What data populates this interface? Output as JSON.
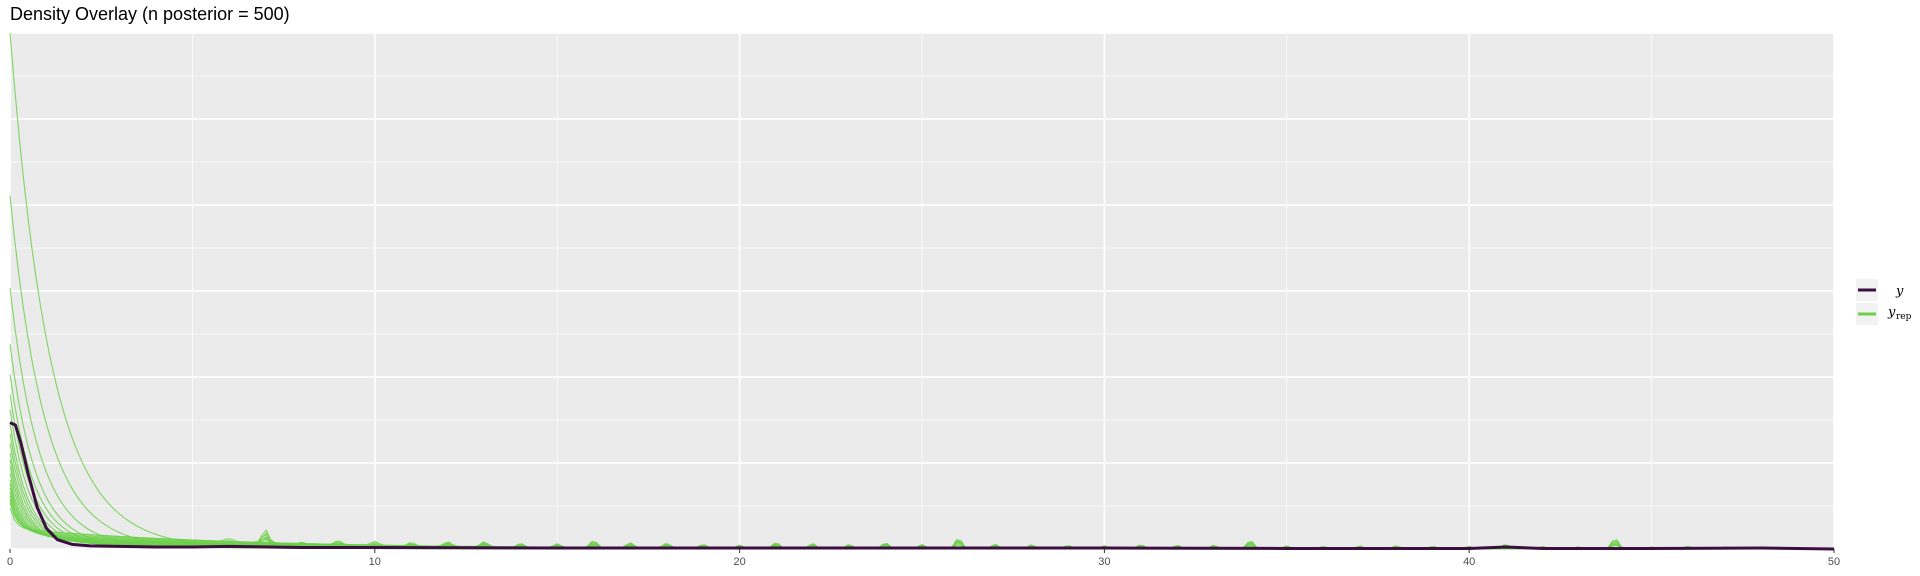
{
  "chart_data": {
    "type": "line",
    "title": "Density Overlay (n posterior = 500)",
    "xlabel": "",
    "ylabel": "",
    "xlim": [
      0,
      50
    ],
    "ylim": [
      0,
      1
    ],
    "x_ticks": [
      0,
      10,
      20,
      30,
      40,
      50
    ],
    "x_tick_labels": [
      "0",
      "10",
      "20",
      "30",
      "40",
      "50"
    ],
    "y_tick_labels_visible": false,
    "grid": true,
    "legend_position": "right",
    "legend": [
      {
        "key": "y",
        "label": "y",
        "color": "#3b0f3f"
      },
      {
        "key": "yrep",
        "label": "y",
        "subscript": "rep",
        "color": "#6cd04a"
      }
    ],
    "series": [
      {
        "name": "y",
        "color": "#3b0f3f",
        "x": [
          0,
          0.15,
          0.3,
          0.5,
          0.75,
          1.0,
          1.3,
          1.7,
          2.2,
          3,
          4,
          5,
          6,
          8,
          10,
          15,
          20,
          25,
          30,
          35,
          40,
          41,
          42,
          45,
          48,
          50
        ],
        "y": [
          0.245,
          0.24,
          0.205,
          0.145,
          0.08,
          0.04,
          0.018,
          0.009,
          0.006,
          0.005,
          0.004,
          0.004,
          0.005,
          0.003,
          0.003,
          0.002,
          0.002,
          0.002,
          0.002,
          0.001,
          0.001,
          0.004,
          0.001,
          0.001,
          0.002,
          0.0
        ]
      },
      {
        "name": "y_rep",
        "color": "#6cd04a",
        "draws": [
          {
            "peak": 1.0,
            "decay": 2.2,
            "tail": 0.004
          },
          {
            "peak": 0.68,
            "decay": 1.9,
            "tail": 0.005
          },
          {
            "peak": 0.5,
            "decay": 1.6,
            "tail": 0.006
          },
          {
            "peak": 0.39,
            "decay": 1.4,
            "tail": 0.007
          },
          {
            "peak": 0.33,
            "decay": 1.3,
            "tail": 0.008
          },
          {
            "peak": 0.29,
            "decay": 1.2,
            "tail": 0.009
          },
          {
            "peak": 0.26,
            "decay": 1.1,
            "tail": 0.01
          },
          {
            "peak": 0.23,
            "decay": 1.0,
            "tail": 0.012
          },
          {
            "peak": 0.21,
            "decay": 0.95,
            "tail": 0.013
          },
          {
            "peak": 0.19,
            "decay": 0.9,
            "tail": 0.015
          },
          {
            "peak": 0.17,
            "decay": 0.85,
            "tail": 0.016
          },
          {
            "peak": 0.155,
            "decay": 0.8,
            "tail": 0.018
          },
          {
            "peak": 0.14,
            "decay": 0.75,
            "tail": 0.02
          },
          {
            "peak": 0.125,
            "decay": 0.7,
            "tail": 0.022
          },
          {
            "peak": 0.11,
            "decay": 0.65,
            "tail": 0.024
          },
          {
            "peak": 0.1,
            "decay": 0.6,
            "tail": 0.026
          },
          {
            "peak": 0.09,
            "decay": 0.55,
            "tail": 0.028
          },
          {
            "peak": 0.08,
            "decay": 0.5,
            "tail": 0.03
          },
          {
            "peak": 0.07,
            "decay": 0.45,
            "tail": 0.033
          },
          {
            "peak": 0.06,
            "decay": 0.4,
            "tail": 0.036
          },
          {
            "peak": 0.05,
            "decay": 0.35,
            "tail": 0.04
          },
          {
            "peak": 0.04,
            "decay": 0.3,
            "tail": 0.04
          }
        ],
        "bumps": [
          {
            "x": 6.0,
            "h": 0.008
          },
          {
            "x": 7.0,
            "h": 0.03
          },
          {
            "x": 8.0,
            "h": 0.006
          },
          {
            "x": 9.0,
            "h": 0.009
          },
          {
            "x": 10.0,
            "h": 0.007
          },
          {
            "x": 11.0,
            "h": 0.008
          },
          {
            "x": 12.0,
            "h": 0.01
          },
          {
            "x": 13.0,
            "h": 0.012
          },
          {
            "x": 14.0,
            "h": 0.009
          },
          {
            "x": 15.0,
            "h": 0.008
          },
          {
            "x": 16.0,
            "h": 0.014
          },
          {
            "x": 17.0,
            "h": 0.01
          },
          {
            "x": 18.0,
            "h": 0.009
          },
          {
            "x": 19.0,
            "h": 0.008
          },
          {
            "x": 20.0,
            "h": 0.007
          },
          {
            "x": 21.0,
            "h": 0.012
          },
          {
            "x": 22.0,
            "h": 0.01
          },
          {
            "x": 23.0,
            "h": 0.008
          },
          {
            "x": 24.0,
            "h": 0.011
          },
          {
            "x": 25.0,
            "h": 0.008
          },
          {
            "x": 26.0,
            "h": 0.02
          },
          {
            "x": 27.0,
            "h": 0.009
          },
          {
            "x": 28.0,
            "h": 0.008
          },
          {
            "x": 29.0,
            "h": 0.007
          },
          {
            "x": 30.0,
            "h": 0.006
          },
          {
            "x": 31.0,
            "h": 0.008
          },
          {
            "x": 32.0,
            "h": 0.007
          },
          {
            "x": 33.0,
            "h": 0.007
          },
          {
            "x": 34.0,
            "h": 0.016
          },
          {
            "x": 35.0,
            "h": 0.006
          },
          {
            "x": 36.0,
            "h": 0.005
          },
          {
            "x": 37.0,
            "h": 0.006
          },
          {
            "x": 38.0,
            "h": 0.006
          },
          {
            "x": 39.0,
            "h": 0.005
          },
          {
            "x": 40.0,
            "h": 0.005
          },
          {
            "x": 41.0,
            "h": 0.009
          },
          {
            "x": 42.0,
            "h": 0.005
          },
          {
            "x": 43.0,
            "h": 0.004
          },
          {
            "x": 44.0,
            "h": 0.02
          },
          {
            "x": 45.0,
            "h": 0.004
          },
          {
            "x": 46.0,
            "h": 0.005
          },
          {
            "x": 47.0,
            "h": 0.004
          },
          {
            "x": 48.0,
            "h": 0.004
          },
          {
            "x": 49.0,
            "h": 0.003
          }
        ]
      }
    ]
  }
}
